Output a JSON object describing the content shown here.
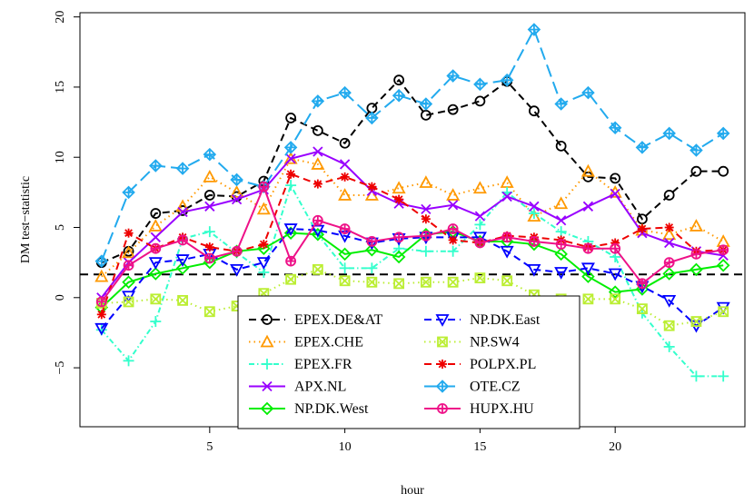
{
  "chart_data": {
    "type": "line",
    "xlabel": "hour",
    "ylabel": "DM test−statistic",
    "xlim": [
      0.2,
      24.8
    ],
    "ylim": [
      -9.2,
      20.3
    ],
    "x_ticks": [
      5,
      10,
      15,
      20
    ],
    "y_ticks": [
      -5,
      0,
      5,
      10,
      15,
      20
    ],
    "y_tick_labels": [
      "−5",
      "0",
      "5",
      "10",
      "15",
      "20"
    ],
    "reference_line": 1.65,
    "grid": false,
    "legend_position": "bottom-center",
    "x": [
      1,
      2,
      3,
      4,
      5,
      6,
      7,
      8,
      9,
      10,
      11,
      12,
      13,
      14,
      15,
      16,
      17,
      18,
      19,
      20,
      21,
      22,
      23,
      24
    ],
    "series": [
      {
        "name": "EPEX.DE&AT",
        "color": "#000000",
        "dash": "8,5",
        "marker": "circle",
        "values": [
          2.5,
          3.3,
          6.0,
          6.2,
          7.3,
          7.2,
          8.3,
          12.8,
          11.9,
          11.0,
          13.5,
          15.5,
          13.0,
          13.4,
          14.0,
          15.4,
          13.3,
          10.8,
          8.6,
          8.5,
          5.6,
          7.3,
          9.0,
          9.0
        ]
      },
      {
        "name": "EPEX.CHE",
        "color": "#ff9900",
        "dash": "1.5,4",
        "marker": "triangle-up",
        "values": [
          1.5,
          3.2,
          5.1,
          6.5,
          8.6,
          7.5,
          6.3,
          9.9,
          9.5,
          7.3,
          7.3,
          7.8,
          8.2,
          7.3,
          7.8,
          8.2,
          5.8,
          6.7,
          9.0,
          7.5,
          4.8,
          4.5,
          5.1,
          4.0
        ]
      },
      {
        "name": "EPEX.FR",
        "color": "#33ffcc",
        "dash": "6,3,1.5,3",
        "marker": "plus",
        "values": [
          -2.3,
          -4.5,
          -1.7,
          4.2,
          4.7,
          3.2,
          1.8,
          8.0,
          4.5,
          2.1,
          2.1,
          3.5,
          3.3,
          3.3,
          5.2,
          7.5,
          6.0,
          4.7,
          4.0,
          2.9,
          -1.1,
          -3.5,
          -5.6,
          -5.6
        ]
      },
      {
        "name": "APX.NL",
        "color": "#9900ff",
        "dash": "",
        "marker": "cross",
        "values": [
          0.0,
          2.5,
          4.3,
          6.1,
          6.5,
          7.0,
          7.7,
          9.9,
          10.4,
          9.5,
          7.6,
          6.7,
          6.3,
          6.6,
          5.8,
          7.2,
          6.5,
          5.5,
          6.5,
          7.4,
          4.6,
          3.9,
          3.3,
          3.0
        ]
      },
      {
        "name": "NP.DK.West",
        "color": "#00ee00",
        "dash": "",
        "marker": "diamond",
        "values": [
          -0.7,
          1.1,
          1.7,
          2.1,
          2.5,
          3.3,
          3.5,
          4.6,
          4.5,
          3.1,
          3.4,
          2.9,
          4.5,
          4.7,
          4.0,
          4.0,
          3.8,
          3.1,
          1.5,
          0.4,
          0.6,
          1.7,
          2.0,
          2.3
        ]
      },
      {
        "name": "NP.DK.East",
        "color": "#0000ff",
        "dash": "8,5",
        "marker": "triangle-down",
        "values": [
          -2.2,
          0.1,
          2.5,
          2.7,
          3.1,
          2.0,
          2.5,
          4.9,
          4.8,
          4.4,
          3.9,
          4.2,
          4.3,
          4.3,
          4.3,
          3.3,
          2.0,
          1.8,
          2.1,
          1.7,
          0.8,
          -0.2,
          -2.0,
          -0.7
        ]
      },
      {
        "name": "NP.SW4",
        "color": "#bbee33",
        "dash": "1.5,4",
        "marker": "square-x",
        "values": [
          -0.4,
          -0.3,
          -0.1,
          -0.2,
          -1.0,
          -0.6,
          0.3,
          1.3,
          2.0,
          1.2,
          1.1,
          1.0,
          1.1,
          1.1,
          1.4,
          1.2,
          0.2,
          -0.1,
          -0.1,
          -0.1,
          -0.8,
          -2.0,
          -1.7,
          -1.0
        ]
      },
      {
        "name": "POLPX.PL",
        "color": "#ee0000",
        "dash": "8,5",
        "marker": "asterisk",
        "values": [
          -1.2,
          4.6,
          3.5,
          4.3,
          3.6,
          3.3,
          3.8,
          8.8,
          8.1,
          8.6,
          7.9,
          7.0,
          5.6,
          4.1,
          3.9,
          4.4,
          4.3,
          4.1,
          3.6,
          3.9,
          4.9,
          5.0,
          3.3,
          3.4
        ]
      },
      {
        "name": "OTE.CZ",
        "color": "#22aaee",
        "dash": "14,6",
        "marker": "diamond-plus",
        "values": [
          2.6,
          7.5,
          9.4,
          9.2,
          10.2,
          8.4,
          7.9,
          10.7,
          14.0,
          14.6,
          12.8,
          14.4,
          13.8,
          15.8,
          15.2,
          15.5,
          19.1,
          13.8,
          14.6,
          12.1,
          10.7,
          11.7,
          10.5,
          11.7
        ]
      },
      {
        "name": "HUPX.HU",
        "color": "#ee1188",
        "dash": "",
        "marker": "circle-plus",
        "values": [
          -0.3,
          2.3,
          3.5,
          4.1,
          2.8,
          3.3,
          7.9,
          2.6,
          5.5,
          4.9,
          4.0,
          4.3,
          4.4,
          4.9,
          3.9,
          4.3,
          4.0,
          3.8,
          3.5,
          3.5,
          1.0,
          2.5,
          3.1,
          3.4
        ]
      }
    ]
  }
}
